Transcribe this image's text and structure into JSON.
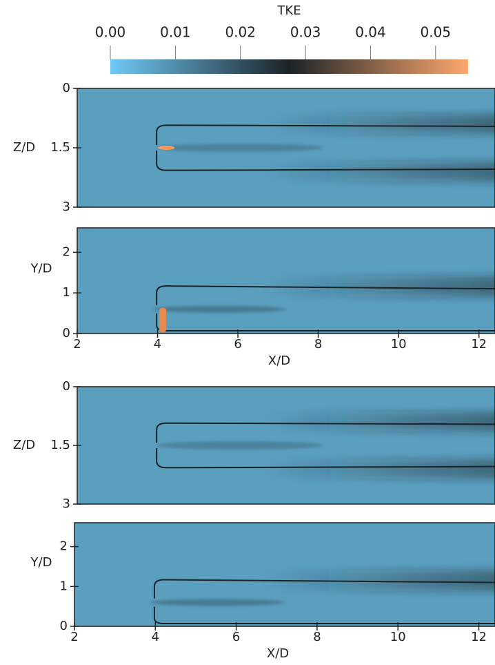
{
  "chart_data": [
    {
      "type": "colorbar",
      "title": "TKE",
      "xlim": [
        0,
        0.055
      ],
      "xticks": [
        {
          "value": 0,
          "label": "0.00"
        },
        {
          "value": 0.01,
          "label": "0.01"
        },
        {
          "value": 0.02,
          "label": "0.02"
        },
        {
          "value": 0.03,
          "label": "0.03"
        },
        {
          "value": 0.04,
          "label": "0.04"
        },
        {
          "value": 0.05,
          "label": "0.05"
        }
      ],
      "colors": [
        "#6fc9f7",
        "#1c2327",
        "#ffa86e"
      ]
    },
    {
      "type": "heatmap",
      "ylabel": "Z/D",
      "xlim": [
        2,
        12.4
      ],
      "ylim": [
        3,
        0
      ],
      "yticks": [
        0,
        1.5,
        3
      ]
    },
    {
      "type": "heatmap",
      "xlabel": "X/D",
      "ylabel": "Y/D",
      "xlim": [
        2,
        12.4
      ],
      "ylim": [
        0,
        2.6
      ],
      "xticks": [
        2,
        4,
        6,
        8,
        10,
        12
      ],
      "yticks": [
        0,
        1,
        2
      ]
    },
    {
      "type": "heatmap",
      "ylabel": "Z/D",
      "xlim": [
        2,
        12.4
      ],
      "ylim": [
        3,
        0
      ],
      "yticks": [
        0,
        1.5,
        3
      ]
    },
    {
      "type": "heatmap",
      "xlabel": "X/D",
      "ylabel": "Y/D",
      "xlim": [
        2,
        12.4
      ],
      "ylim": [
        0,
        2.6
      ],
      "xticks": [
        2,
        4,
        6,
        8,
        10,
        12
      ],
      "yticks": [
        0,
        1,
        2
      ]
    }
  ]
}
